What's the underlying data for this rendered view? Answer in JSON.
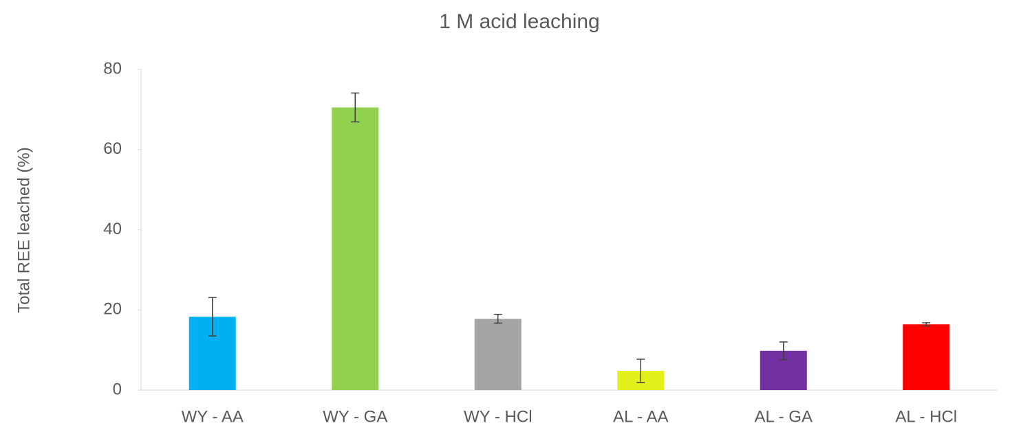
{
  "chart_data": {
    "type": "bar",
    "title": "1 M acid leaching",
    "y_label": "Total REE leached (%)",
    "categories": [
      "WY - AA",
      "WY - GA",
      "WY - HCl",
      "AL - AA",
      "AL - GA",
      "AL - HCl"
    ],
    "values": [
      18.3,
      70.5,
      17.8,
      4.8,
      9.8,
      16.4
    ],
    "errors": [
      4.8,
      3.6,
      1.1,
      2.9,
      2.2,
      0.4
    ],
    "colors": [
      "#00b0f0",
      "#92d050",
      "#a5a5a5",
      "#e2f01c",
      "#7030a0",
      "#ff0000"
    ],
    "ylim": [
      0,
      80
    ],
    "yticks": [
      0,
      20,
      40,
      60,
      80
    ],
    "grid": false
  }
}
